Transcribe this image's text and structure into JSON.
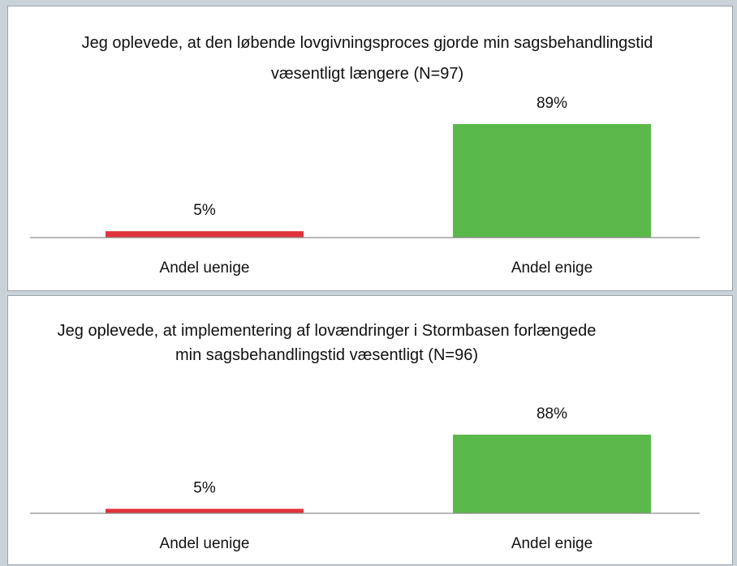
{
  "chart_data": [
    {
      "type": "bar",
      "title": "Jeg oplevede, at den løbende lovgivningsproces gjorde min sagsbehandlingstid væsentligt længere (N=97)",
      "categories": [
        "Andel uenige",
        "Andel enige"
      ],
      "values": [
        5,
        89
      ],
      "value_labels": [
        "5%",
        "89%"
      ],
      "colors": [
        "#e0343c",
        "#5ab94a"
      ]
    },
    {
      "type": "bar",
      "title": "Jeg oplevede, at implementering af lovændringer i Stormbasen forlængede min sagsbehandlingstid væsentligt (N=96)",
      "categories": [
        "Andel uenige",
        "Andel enige"
      ],
      "values": [
        5,
        88
      ],
      "value_labels": [
        "5%",
        "88%"
      ],
      "colors": [
        "#e0343c",
        "#5ab94a"
      ]
    }
  ]
}
